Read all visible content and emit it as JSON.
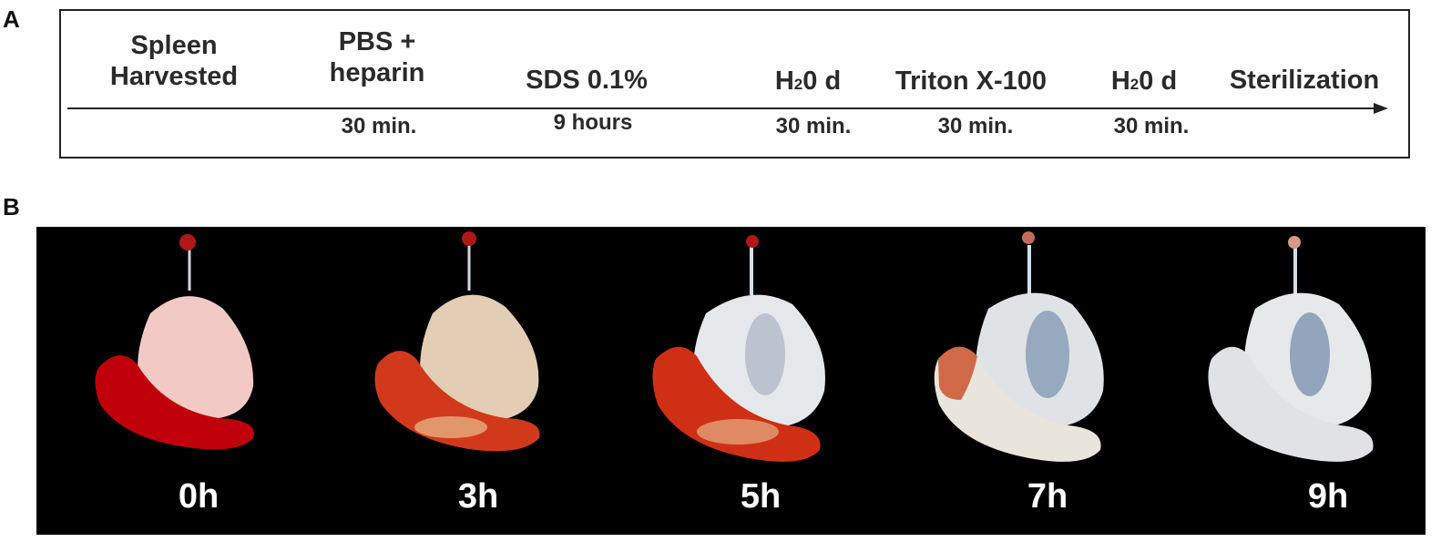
{
  "panels": {
    "a_label": "A",
    "b_label": "B"
  },
  "timeline": {
    "steps": [
      {
        "name_line1": "Spleen",
        "name_line2": "Harvested",
        "duration": ""
      },
      {
        "name_line1": "PBS +",
        "name_line2": "heparin",
        "duration": "30 min."
      },
      {
        "name_line1": "SDS 0.1%",
        "name_line2": "",
        "duration": "9 hours"
      },
      {
        "name_pre": "H",
        "name_sub": "2",
        "name_post": "0 d",
        "duration": "30 min."
      },
      {
        "name_line1": "Triton X-100",
        "name_line2": "",
        "duration": "30 min."
      },
      {
        "name_pre": "H",
        "name_sub": "2",
        "name_post": "0 d",
        "duration": "30 min."
      },
      {
        "name_line1": "Sterilization",
        "name_line2": "",
        "duration": ""
      }
    ]
  },
  "photos": {
    "specimens": [
      {
        "time": "0h",
        "spleen_color": "#c0000a",
        "tissue_color": "#f2c9c4"
      },
      {
        "time": "3h",
        "spleen_color": "#d2391b",
        "tissue_color": "#e3cdb4"
      },
      {
        "time": "5h",
        "spleen_color": "#cf2f14",
        "tissue_color": "#e4e8ea"
      },
      {
        "time": "7h",
        "spleen_color": "#e9e4dc",
        "tissue_color": "#dfe3e5"
      },
      {
        "time": "9h",
        "spleen_color": "#dfe3e6",
        "tissue_color": "#e6e9ea"
      }
    ]
  }
}
